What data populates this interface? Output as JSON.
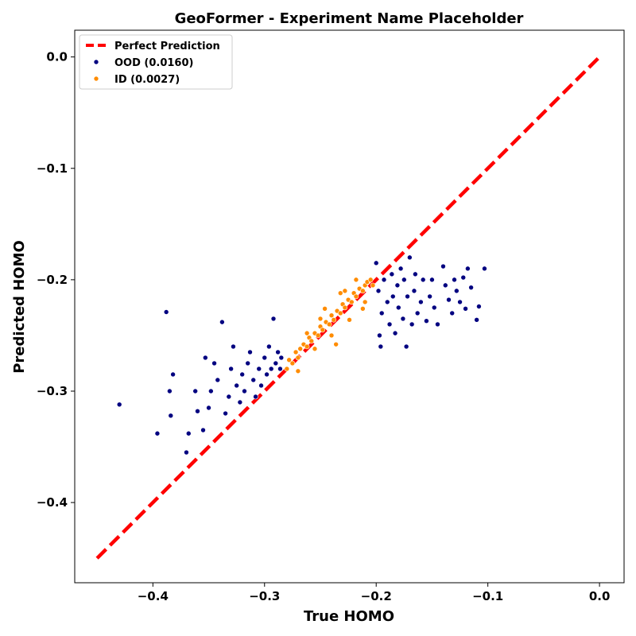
{
  "chart_data": {
    "type": "scatter",
    "title": "GeoFormer - Experiment Name Placeholder",
    "xlabel": "True HOMO",
    "ylabel": "Predicted HOMO",
    "xlim": [
      -0.47,
      0.022
    ],
    "ylim": [
      -0.472,
      0.024
    ],
    "x_ticks": [
      -0.4,
      -0.3,
      -0.2,
      -0.1,
      0.0
    ],
    "x_tick_labels": [
      "−0.4",
      "−0.3",
      "−0.2",
      "−0.1",
      "0.0"
    ],
    "y_ticks": [
      -0.4,
      -0.3,
      -0.2,
      -0.1,
      0.0
    ],
    "y_tick_labels": [
      "−0.4",
      "−0.3",
      "−0.2",
      "−0.1",
      "0.0"
    ],
    "grid": false,
    "legend_position": "top-left",
    "reference_line": {
      "name": "Perfect Prediction",
      "x": [
        -0.45,
        0.0
      ],
      "y": [
        -0.45,
        0.0
      ],
      "color": "#ff0000",
      "style": "dashed"
    },
    "series": [
      {
        "name": "OOD (0.0160)",
        "color": "#000080",
        "points": [
          [
            -0.43,
            -0.312
          ],
          [
            -0.396,
            -0.338
          ],
          [
            -0.388,
            -0.229
          ],
          [
            -0.385,
            -0.3
          ],
          [
            -0.384,
            -0.322
          ],
          [
            -0.382,
            -0.285
          ],
          [
            -0.37,
            -0.355
          ],
          [
            -0.368,
            -0.338
          ],
          [
            -0.362,
            -0.3
          ],
          [
            -0.36,
            -0.318
          ],
          [
            -0.355,
            -0.335
          ],
          [
            -0.353,
            -0.27
          ],
          [
            -0.35,
            -0.315
          ],
          [
            -0.348,
            -0.3
          ],
          [
            -0.345,
            -0.275
          ],
          [
            -0.342,
            -0.29
          ],
          [
            -0.338,
            -0.238
          ],
          [
            -0.335,
            -0.32
          ],
          [
            -0.332,
            -0.305
          ],
          [
            -0.33,
            -0.28
          ],
          [
            -0.328,
            -0.26
          ],
          [
            -0.325,
            -0.295
          ],
          [
            -0.322,
            -0.31
          ],
          [
            -0.32,
            -0.285
          ],
          [
            -0.318,
            -0.3
          ],
          [
            -0.315,
            -0.275
          ],
          [
            -0.313,
            -0.265
          ],
          [
            -0.31,
            -0.29
          ],
          [
            -0.308,
            -0.305
          ],
          [
            -0.305,
            -0.28
          ],
          [
            -0.303,
            -0.295
          ],
          [
            -0.3,
            -0.27
          ],
          [
            -0.298,
            -0.285
          ],
          [
            -0.296,
            -0.26
          ],
          [
            -0.294,
            -0.28
          ],
          [
            -0.292,
            -0.235
          ],
          [
            -0.29,
            -0.275
          ],
          [
            -0.288,
            -0.265
          ],
          [
            -0.286,
            -0.28
          ],
          [
            -0.285,
            -0.27
          ],
          [
            -0.2,
            -0.185
          ],
          [
            -0.198,
            -0.21
          ],
          [
            -0.197,
            -0.25
          ],
          [
            -0.196,
            -0.26
          ],
          [
            -0.195,
            -0.23
          ],
          [
            -0.193,
            -0.2
          ],
          [
            -0.19,
            -0.22
          ],
          [
            -0.188,
            -0.24
          ],
          [
            -0.186,
            -0.195
          ],
          [
            -0.185,
            -0.215
          ],
          [
            -0.183,
            -0.248
          ],
          [
            -0.181,
            -0.205
          ],
          [
            -0.18,
            -0.225
          ],
          [
            -0.178,
            -0.19
          ],
          [
            -0.176,
            -0.235
          ],
          [
            -0.175,
            -0.2
          ],
          [
            -0.173,
            -0.26
          ],
          [
            -0.172,
            -0.215
          ],
          [
            -0.17,
            -0.18
          ],
          [
            -0.168,
            -0.24
          ],
          [
            -0.166,
            -0.21
          ],
          [
            -0.165,
            -0.195
          ],
          [
            -0.163,
            -0.23
          ],
          [
            -0.16,
            -0.22
          ],
          [
            -0.158,
            -0.2
          ],
          [
            -0.155,
            -0.237
          ],
          [
            -0.152,
            -0.215
          ],
          [
            -0.15,
            -0.2
          ],
          [
            -0.148,
            -0.225
          ],
          [
            -0.145,
            -0.24
          ],
          [
            -0.14,
            -0.188
          ],
          [
            -0.138,
            -0.205
          ],
          [
            -0.135,
            -0.218
          ],
          [
            -0.132,
            -0.23
          ],
          [
            -0.13,
            -0.2
          ],
          [
            -0.128,
            -0.21
          ],
          [
            -0.125,
            -0.22
          ],
          [
            -0.122,
            -0.198
          ],
          [
            -0.12,
            -0.226
          ],
          [
            -0.118,
            -0.19
          ],
          [
            -0.115,
            -0.207
          ],
          [
            -0.11,
            -0.236
          ],
          [
            -0.108,
            -0.224
          ],
          [
            -0.103,
            -0.19
          ]
        ]
      },
      {
        "name": "ID (0.0027)",
        "color": "#ff8c00",
        "points": [
          [
            -0.28,
            -0.28
          ],
          [
            -0.278,
            -0.272
          ],
          [
            -0.275,
            -0.275
          ],
          [
            -0.272,
            -0.265
          ],
          [
            -0.27,
            -0.27
          ],
          [
            -0.268,
            -0.262
          ],
          [
            -0.265,
            -0.258
          ],
          [
            -0.262,
            -0.26
          ],
          [
            -0.26,
            -0.252
          ],
          [
            -0.258,
            -0.255
          ],
          [
            -0.255,
            -0.248
          ],
          [
            -0.252,
            -0.25
          ],
          [
            -0.25,
            -0.242
          ],
          [
            -0.248,
            -0.245
          ],
          [
            -0.245,
            -0.238
          ],
          [
            -0.242,
            -0.24
          ],
          [
            -0.24,
            -0.232
          ],
          [
            -0.238,
            -0.236
          ],
          [
            -0.235,
            -0.228
          ],
          [
            -0.232,
            -0.23
          ],
          [
            -0.23,
            -0.222
          ],
          [
            -0.228,
            -0.225
          ],
          [
            -0.225,
            -0.218
          ],
          [
            -0.222,
            -0.22
          ],
          [
            -0.22,
            -0.212
          ],
          [
            -0.218,
            -0.215
          ],
          [
            -0.215,
            -0.208
          ],
          [
            -0.212,
            -0.21
          ],
          [
            -0.21,
            -0.205
          ],
          [
            -0.208,
            -0.202
          ],
          [
            -0.205,
            -0.2
          ],
          [
            -0.203,
            -0.205
          ],
          [
            -0.262,
            -0.248
          ],
          [
            -0.255,
            -0.262
          ],
          [
            -0.246,
            -0.226
          ],
          [
            -0.236,
            -0.258
          ],
          [
            -0.232,
            -0.212
          ],
          [
            -0.224,
            -0.236
          ],
          [
            -0.218,
            -0.2
          ],
          [
            -0.212,
            -0.226
          ],
          [
            -0.27,
            -0.282
          ],
          [
            -0.25,
            -0.235
          ],
          [
            -0.24,
            -0.25
          ],
          [
            -0.228,
            -0.21
          ],
          [
            -0.21,
            -0.22
          ]
        ]
      }
    ]
  }
}
